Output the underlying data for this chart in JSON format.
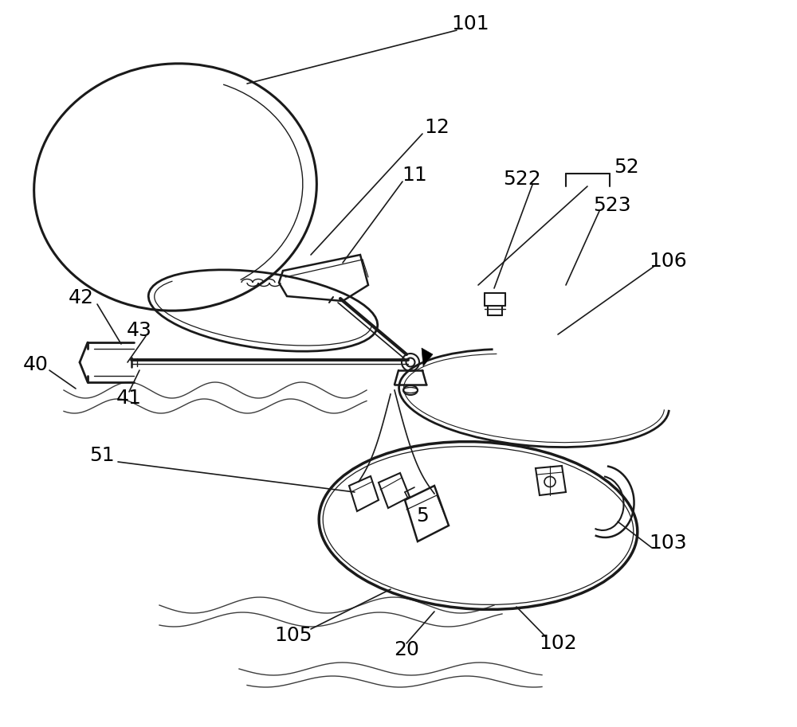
{
  "bg_color": "#ffffff",
  "line_color": "#1a1a1a",
  "lw": 1.5,
  "fontsize": 18,
  "fig_w": 10.0,
  "fig_h": 9.13,
  "dpi": 100
}
